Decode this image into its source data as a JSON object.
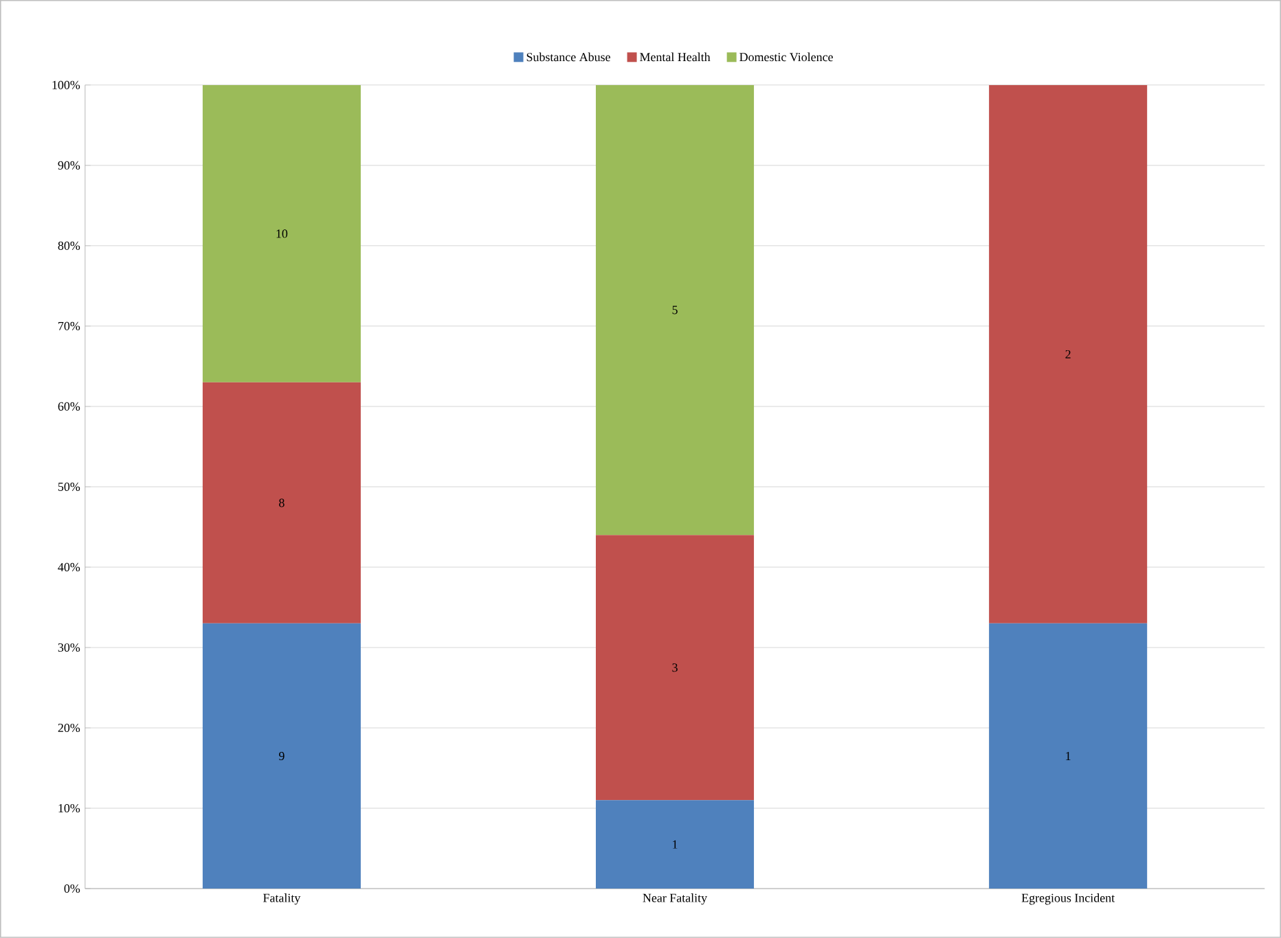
{
  "chart_data": {
    "type": "bar",
    "stacked": true,
    "categories": [
      "Fatality",
      "Near Fatality",
      "Egregious Incident"
    ],
    "series": [
      {
        "name": "Substance Abuse",
        "color": "#4f81bd",
        "values": [
          33,
          11,
          33
        ]
      },
      {
        "name": "Mental Health",
        "color": "#c0504d",
        "values": [
          30,
          33,
          67
        ]
      },
      {
        "name": "Domestic Violence",
        "color": "#9bbb59",
        "values": [
          37,
          56,
          0
        ]
      }
    ],
    "annotations": [
      "9",
      "1",
      "1",
      "8",
      "3",
      "2",
      "10",
      "5"
    ],
    "ylim": [
      0,
      100
    ],
    "yticks": [
      {
        "value": 0,
        "label": "0%"
      },
      {
        "value": 10,
        "label": "10%"
      },
      {
        "value": 20,
        "label": "20%"
      },
      {
        "value": 30,
        "label": "30%"
      },
      {
        "value": 40,
        "label": "40%"
      },
      {
        "value": 50,
        "label": "50%"
      },
      {
        "value": 60,
        "label": "60%"
      },
      {
        "value": 70,
        "label": "70%"
      },
      {
        "value": 80,
        "label": "80%"
      },
      {
        "value": 90,
        "label": "90%"
      },
      {
        "value": 100,
        "label": "100%"
      }
    ],
    "grid": "y",
    "legend": "top"
  }
}
